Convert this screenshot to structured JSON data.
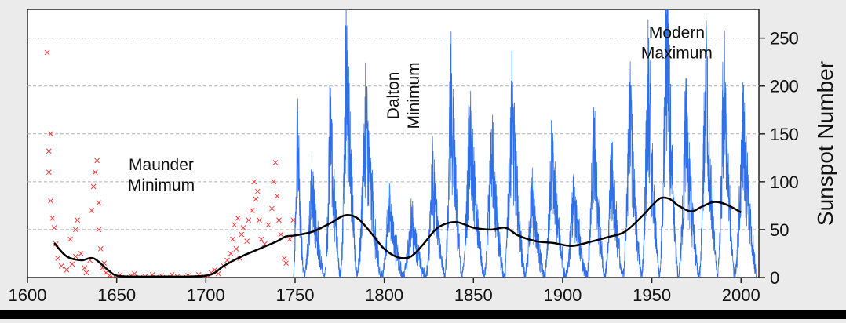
{
  "chart_data": {
    "type": "line",
    "title": "",
    "xlabel": "",
    "ylabel": "Sunspot Number",
    "y_axis_side": "right",
    "xlim": [
      1600,
      2010
    ],
    "ylim": [
      0,
      280
    ],
    "x_ticks": [
      1600,
      1650,
      1700,
      1750,
      1800,
      1850,
      1900,
      1950,
      2000
    ],
    "y_ticks": [
      0,
      50,
      100,
      150,
      200,
      250
    ],
    "grid": "horizontal dashed",
    "colors": {
      "early_observations": "#ff3b3b",
      "monthly": "#2f6fe8",
      "trend": "#000000",
      "background": "#ebebeb",
      "plot_background": "#ffffff"
    },
    "series": [
      {
        "style": "scatter-x",
        "color": "#ff3b3b",
        "points": [
          [
            1611,
            235
          ],
          [
            1612,
            132
          ],
          [
            1612,
            110
          ],
          [
            1613,
            150
          ],
          [
            1613,
            80
          ],
          [
            1614,
            62
          ],
          [
            1615,
            52
          ],
          [
            1616,
            35
          ],
          [
            1617,
            20
          ],
          [
            1619,
            12
          ],
          [
            1622,
            8
          ],
          [
            1624,
            40
          ],
          [
            1625,
            14
          ],
          [
            1627,
            50
          ],
          [
            1627,
            22
          ],
          [
            1628,
            60
          ],
          [
            1630,
            25
          ],
          [
            1632,
            10
          ],
          [
            1633,
            5
          ],
          [
            1635,
            18
          ],
          [
            1636,
            70
          ],
          [
            1637,
            95
          ],
          [
            1638,
            110
          ],
          [
            1639,
            122
          ],
          [
            1640,
            78
          ],
          [
            1640,
            50
          ],
          [
            1641,
            30
          ],
          [
            1642,
            10
          ],
          [
            1643,
            15
          ],
          [
            1644,
            5
          ],
          [
            1646,
            2
          ],
          [
            1648,
            0
          ],
          [
            1652,
            3
          ],
          [
            1655,
            0
          ],
          [
            1658,
            2
          ],
          [
            1660,
            4
          ],
          [
            1663,
            0
          ],
          [
            1666,
            1
          ],
          [
            1670,
            3
          ],
          [
            1672,
            0
          ],
          [
            1675,
            2
          ],
          [
            1678,
            0
          ],
          [
            1681,
            3
          ],
          [
            1684,
            1
          ],
          [
            1687,
            0
          ],
          [
            1690,
            2
          ],
          [
            1693,
            0
          ],
          [
            1696,
            3
          ],
          [
            1699,
            1
          ],
          [
            1701,
            0
          ],
          [
            1703,
            5
          ],
          [
            1705,
            8
          ],
          [
            1707,
            4
          ],
          [
            1710,
            12
          ],
          [
            1712,
            18
          ],
          [
            1714,
            25
          ],
          [
            1715,
            40
          ],
          [
            1716,
            55
          ],
          [
            1717,
            30
          ],
          [
            1718,
            62
          ],
          [
            1719,
            20
          ],
          [
            1720,
            45
          ],
          [
            1721,
            52
          ],
          [
            1723,
            38
          ],
          [
            1724,
            60
          ],
          [
            1726,
            70
          ],
          [
            1727,
            100
          ],
          [
            1728,
            82
          ],
          [
            1729,
            90
          ],
          [
            1730,
            60
          ],
          [
            1731,
            40
          ],
          [
            1733,
            35
          ],
          [
            1735,
            55
          ],
          [
            1737,
            72
          ],
          [
            1738,
            100
          ],
          [
            1739,
            120
          ],
          [
            1740,
            85
          ],
          [
            1741,
            60
          ],
          [
            1742,
            45
          ],
          [
            1744,
            20
          ],
          [
            1745,
            15
          ],
          [
            1747,
            40
          ],
          [
            1749,
            60
          ]
        ]
      },
      {
        "style": "monthly-line",
        "color": "#2f6fe8",
        "cycles": [
          [
            1749.0,
            1755.2,
            150
          ],
          [
            1755.2,
            1766.5,
            95
          ],
          [
            1766.5,
            1775.5,
            155
          ],
          [
            1775.5,
            1784.7,
            230
          ],
          [
            1784.7,
            1798.3,
            160
          ],
          [
            1798.3,
            1810.6,
            75
          ],
          [
            1810.6,
            1823.3,
            60
          ],
          [
            1823.3,
            1833.9,
            105
          ],
          [
            1833.9,
            1843.5,
            195
          ],
          [
            1843.5,
            1856.0,
            155
          ],
          [
            1856.0,
            1867.2,
            135
          ],
          [
            1867.2,
            1878.9,
            175
          ],
          [
            1878.9,
            1889.6,
            90
          ],
          [
            1889.6,
            1901.7,
            120
          ],
          [
            1901.7,
            1913.6,
            85
          ],
          [
            1913.6,
            1923.6,
            145
          ],
          [
            1923.6,
            1933.8,
            115
          ],
          [
            1933.8,
            1944.2,
            170
          ],
          [
            1944.2,
            1954.3,
            200
          ],
          [
            1954.3,
            1964.8,
            260
          ],
          [
            1964.8,
            1976.5,
            155
          ],
          [
            1976.5,
            1986.8,
            205
          ],
          [
            1986.8,
            1996.4,
            200
          ],
          [
            1996.4,
            2008.9,
            160
          ]
        ]
      },
      {
        "style": "smooth-line",
        "color": "#000000",
        "points": [
          [
            1615,
            36
          ],
          [
            1622,
            22
          ],
          [
            1630,
            18
          ],
          [
            1637,
            20
          ],
          [
            1645,
            8
          ],
          [
            1650,
            2
          ],
          [
            1660,
            1
          ],
          [
            1670,
            1
          ],
          [
            1680,
            1
          ],
          [
            1690,
            1
          ],
          [
            1700,
            2
          ],
          [
            1705,
            5
          ],
          [
            1710,
            12
          ],
          [
            1720,
            22
          ],
          [
            1730,
            30
          ],
          [
            1740,
            38
          ],
          [
            1745,
            43
          ],
          [
            1750,
            44
          ],
          [
            1760,
            48
          ],
          [
            1770,
            57
          ],
          [
            1778,
            65
          ],
          [
            1785,
            62
          ],
          [
            1792,
            48
          ],
          [
            1800,
            30
          ],
          [
            1808,
            21
          ],
          [
            1815,
            22
          ],
          [
            1822,
            35
          ],
          [
            1830,
            52
          ],
          [
            1840,
            58
          ],
          [
            1850,
            52
          ],
          [
            1860,
            50
          ],
          [
            1868,
            52
          ],
          [
            1875,
            44
          ],
          [
            1885,
            38
          ],
          [
            1895,
            36
          ],
          [
            1905,
            33
          ],
          [
            1915,
            37
          ],
          [
            1925,
            42
          ],
          [
            1935,
            48
          ],
          [
            1945,
            65
          ],
          [
            1950,
            75
          ],
          [
            1955,
            83
          ],
          [
            1960,
            82
          ],
          [
            1965,
            75
          ],
          [
            1972,
            69
          ],
          [
            1978,
            74
          ],
          [
            1985,
            79
          ],
          [
            1992,
            76
          ],
          [
            2000,
            68
          ]
        ]
      }
    ],
    "annotations": [
      {
        "label": "Maunder\nMinimum",
        "x": 1675,
        "y": 112
      },
      {
        "label": "Dalton\nMinimum",
        "x": 1808,
        "y": 190,
        "rotation": -90
      },
      {
        "label": "Modern\nMaximum",
        "x": 1964,
        "y": 250
      }
    ]
  }
}
